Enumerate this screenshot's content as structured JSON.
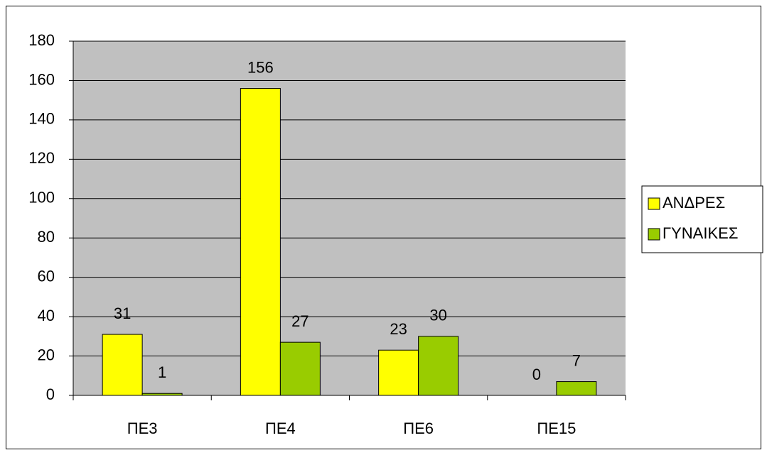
{
  "chart_data": {
    "type": "bar",
    "categories": [
      "ΠΕ3",
      "ΠΕ4",
      "ΠΕ6",
      "ΠΕ15"
    ],
    "series": [
      {
        "name": "ΑΝΔΡΕΣ",
        "color": "#ffff00",
        "values": [
          31,
          156,
          23,
          0
        ]
      },
      {
        "name": "ΓΥΝΑΙΚΕΣ",
        "color": "#99cc00",
        "values": [
          1,
          27,
          30,
          7
        ]
      }
    ],
    "ylim": [
      0,
      180
    ],
    "yticks": [
      0,
      20,
      40,
      60,
      80,
      100,
      120,
      140,
      160,
      180
    ],
    "grid": true,
    "legend": "right"
  }
}
